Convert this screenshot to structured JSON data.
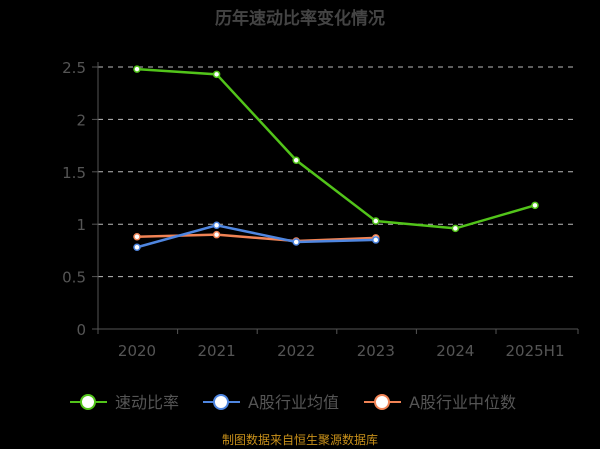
{
  "chart_data": {
    "type": "line",
    "title": "历年速动比率变化情况",
    "categories": [
      "2020",
      "2021",
      "2022",
      "2023",
      "2024",
      "2025H1"
    ],
    "ylim": [
      0,
      2.5
    ],
    "yticks": [
      "0",
      "0.5",
      "1",
      "1.5",
      "2",
      "2.5"
    ],
    "grid": true,
    "legend_placement": "bottom",
    "series": [
      {
        "name": "速动比率",
        "color": "#52c41a",
        "values": [
          2.48,
          2.43,
          1.61,
          1.03,
          0.96,
          1.18
        ]
      },
      {
        "name": "A股行业均值",
        "color": "#4f86e0",
        "values": [
          0.78,
          0.99,
          0.83,
          0.85,
          null,
          null
        ]
      },
      {
        "name": "A股行业中位数",
        "color": "#f08355",
        "values": [
          0.88,
          0.9,
          0.84,
          0.87,
          null,
          null
        ]
      }
    ],
    "footer": "制图数据来自恒生聚源数据库",
    "footer_color": "#c8901a"
  }
}
